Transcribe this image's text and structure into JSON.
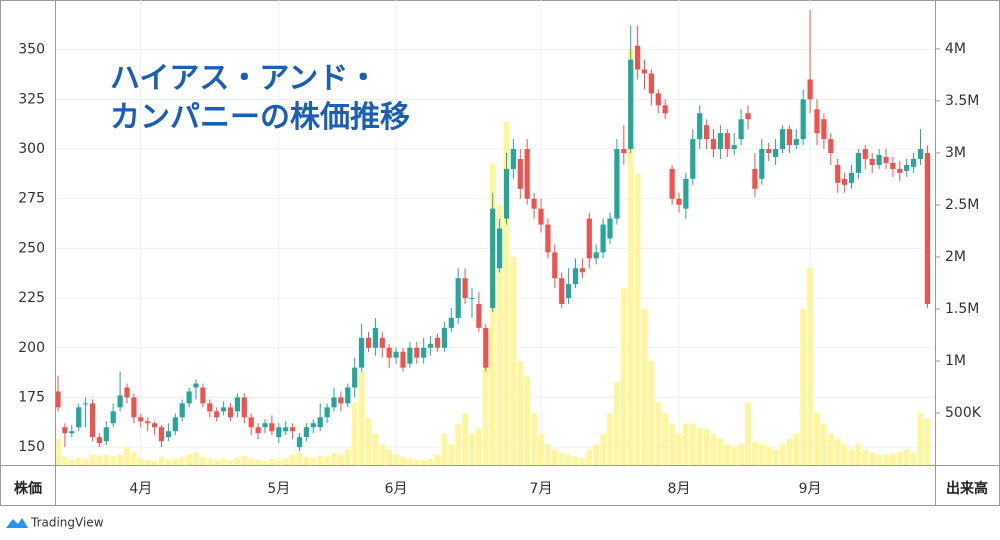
{
  "chart_data": {
    "type": "candlestick",
    "title_lines": [
      "ハイアス・アンド・",
      "カンパニーの株価推移"
    ],
    "y_label": "株価",
    "y2_label": "出来高",
    "brand": "TradingView",
    "up_color": "#26a69a",
    "down_color": "#ef5350",
    "volume_color": "#fff59d",
    "grid": true,
    "categories": [
      null,
      null,
      null,
      null,
      null,
      null,
      null,
      null,
      null,
      null,
      null,
      null,
      "4月",
      null,
      null,
      null,
      null,
      null,
      null,
      null,
      null,
      null,
      null,
      null,
      null,
      null,
      null,
      null,
      null,
      null,
      null,
      null,
      "5月",
      null,
      null,
      null,
      null,
      null,
      null,
      null,
      null,
      null,
      null,
      null,
      null,
      null,
      null,
      null,
      null,
      "6月",
      null,
      null,
      null,
      null,
      null,
      null,
      null,
      null,
      null,
      null,
      null,
      null,
      null,
      null,
      null,
      null,
      null,
      null,
      null,
      null,
      "7月",
      null,
      null,
      null,
      null,
      null,
      null,
      null,
      null,
      null,
      null,
      null,
      null,
      null,
      null,
      null,
      null,
      null,
      null,
      null,
      "8月",
      null,
      null,
      null,
      null,
      null,
      null,
      null,
      null,
      null,
      null,
      null,
      null,
      null,
      null,
      null,
      null,
      null,
      null,
      "9月",
      null,
      null,
      null,
      null,
      null,
      null,
      null,
      null,
      null,
      null,
      null,
      null,
      null,
      null,
      null,
      null,
      null
    ],
    "open": [
      178,
      160,
      157,
      160,
      172,
      172,
      155,
      153,
      162,
      170,
      180,
      175,
      165,
      163,
      162,
      160,
      155,
      158,
      165,
      172,
      180,
      180,
      172,
      168,
      168,
      170,
      168,
      175,
      165,
      160,
      160,
      162,
      155,
      158,
      160,
      150,
      155,
      160,
      160,
      165,
      170,
      175,
      172,
      180,
      190,
      205,
      200,
      205,
      200,
      195,
      198,
      192,
      200,
      195,
      200,
      205,
      200,
      210,
      215,
      235,
      225,
      222,
      210,
      220,
      240,
      265,
      290,
      295,
      300,
      275,
      270,
      262,
      248,
      235,
      225,
      232,
      240,
      265,
      245,
      248,
      255,
      265,
      300,
      300,
      352,
      340,
      338,
      328,
      322,
      290,
      275,
      270,
      285,
      305,
      312,
      305,
      300,
      308,
      300,
      305,
      318,
      290,
      285,
      300,
      296,
      300,
      310,
      302,
      305,
      335,
      320,
      315,
      305,
      292,
      285,
      283,
      288,
      300,
      295,
      292,
      296,
      293,
      290,
      289,
      291,
      295,
      298
    ],
    "high": [
      186,
      162,
      161,
      172,
      175,
      174,
      157,
      163,
      172,
      188,
      182,
      177,
      167,
      165,
      163,
      161,
      162,
      167,
      174,
      180,
      184,
      182,
      174,
      170,
      173,
      172,
      177,
      177,
      167,
      162,
      164,
      166,
      162,
      163,
      162,
      157,
      162,
      164,
      172,
      172,
      180,
      178,
      182,
      195,
      212,
      208,
      215,
      208,
      202,
      200,
      200,
      203,
      203,
      205,
      206,
      207,
      213,
      220,
      240,
      240,
      230,
      228,
      212,
      278,
      265,
      298,
      305,
      300,
      305,
      278,
      275,
      265,
      252,
      238,
      240,
      245,
      245,
      268,
      252,
      265,
      268,
      305,
      312,
      362,
      362,
      345,
      340,
      330,
      325,
      292,
      278,
      288,
      310,
      322,
      315,
      310,
      312,
      310,
      308,
      320,
      322,
      298,
      305,
      303,
      305,
      312,
      312,
      310,
      330,
      370,
      325,
      318,
      308,
      295,
      288,
      292,
      300,
      302,
      298,
      300,
      300,
      296,
      294,
      295,
      298,
      310,
      302
    ],
    "low": [
      168,
      150,
      155,
      158,
      160,
      153,
      150,
      151,
      160,
      168,
      172,
      162,
      160,
      158,
      156,
      150,
      153,
      156,
      163,
      170,
      174,
      170,
      165,
      163,
      166,
      163,
      165,
      162,
      156,
      154,
      157,
      156,
      152,
      156,
      154,
      148,
      153,
      157,
      158,
      162,
      168,
      168,
      170,
      175,
      188,
      198,
      196,
      195,
      190,
      192,
      188,
      190,
      192,
      192,
      196,
      198,
      198,
      208,
      212,
      222,
      215,
      208,
      188,
      218,
      238,
      262,
      285,
      275,
      272,
      265,
      258,
      245,
      230,
      220,
      222,
      230,
      235,
      240,
      242,
      245,
      252,
      262,
      292,
      298,
      335,
      330,
      322,
      318,
      315,
      272,
      268,
      265,
      282,
      300,
      300,
      296,
      295,
      296,
      297,
      302,
      310,
      276,
      282,
      294,
      292,
      298,
      298,
      300,
      302,
      318,
      302,
      300,
      292,
      278,
      278,
      280,
      285,
      290,
      288,
      290,
      290,
      286,
      284,
      286,
      288,
      292,
      220
    ],
    "close": [
      170,
      157,
      158,
      170,
      172,
      155,
      152,
      160,
      168,
      176,
      175,
      165,
      163,
      162,
      160,
      153,
      158,
      165,
      172,
      178,
      182,
      172,
      168,
      165,
      170,
      165,
      175,
      165,
      160,
      157,
      162,
      158,
      160,
      160,
      158,
      155,
      160,
      162,
      165,
      170,
      175,
      172,
      180,
      190,
      205,
      200,
      210,
      200,
      195,
      198,
      190,
      200,
      195,
      200,
      202,
      200,
      210,
      215,
      235,
      225,
      225,
      210,
      190,
      270,
      260,
      290,
      300,
      280,
      275,
      270,
      262,
      248,
      235,
      222,
      232,
      240,
      238,
      245,
      248,
      262,
      265,
      300,
      298,
      345,
      340,
      338,
      328,
      322,
      318,
      275,
      272,
      285,
      305,
      318,
      305,
      300,
      308,
      300,
      302,
      315,
      315,
      280,
      300,
      298,
      300,
      310,
      302,
      305,
      325,
      325,
      308,
      305,
      298,
      283,
      282,
      288,
      298,
      295,
      292,
      297,
      293,
      290,
      288,
      292,
      295,
      300,
      222
    ],
    "volume": [
      250000,
      80000,
      50000,
      70000,
      60000,
      100000,
      90000,
      100000,
      80000,
      100000,
      180000,
      120000,
      60000,
      50000,
      40000,
      80000,
      50000,
      60000,
      70000,
      100000,
      120000,
      80000,
      60000,
      50000,
      60000,
      50000,
      70000,
      90000,
      60000,
      50000,
      40000,
      60000,
      50000,
      60000,
      100000,
      120000,
      80000,
      70000,
      90000,
      80000,
      120000,
      100000,
      150000,
      600000,
      900000,
      450000,
      300000,
      200000,
      150000,
      100000,
      80000,
      60000,
      50000,
      50000,
      60000,
      100000,
      300000,
      200000,
      400000,
      500000,
      300000,
      350000,
      1000000,
      2900000,
      2500000,
      3300000,
      2000000,
      1000000,
      850000,
      500000,
      300000,
      200000,
      150000,
      120000,
      100000,
      80000,
      70000,
      150000,
      200000,
      300000,
      500000,
      800000,
      1700000,
      4000000,
      2800000,
      1500000,
      1000000,
      600000,
      500000,
      400000,
      300000,
      400000,
      400000,
      350000,
      350000,
      300000,
      250000,
      200000,
      180000,
      200000,
      600000,
      220000,
      200000,
      180000,
      150000,
      200000,
      250000,
      300000,
      1500000,
      1900000,
      500000,
      400000,
      300000,
      250000,
      200000,
      150000,
      200000,
      150000,
      120000,
      100000,
      100000,
      110000,
      130000,
      150000,
      120000,
      500000,
      450000
    ],
    "ylim": [
      141,
      375
    ],
    "yticks": [
      150,
      175,
      200,
      225,
      250,
      275,
      300,
      325,
      350
    ],
    "y2lim": [
      0,
      4470000
    ],
    "y2ticks": [
      {
        "value": 500000,
        "label": "500K"
      },
      {
        "value": 1000000,
        "label": "1M"
      },
      {
        "value": 1500000,
        "label": "1.5M"
      },
      {
        "value": 2000000,
        "label": "2M"
      },
      {
        "value": 2500000,
        "label": "2.5M"
      },
      {
        "value": 3000000,
        "label": "3M"
      },
      {
        "value": 3500000,
        "label": "3.5M"
      },
      {
        "value": 4000000,
        "label": "4M"
      }
    ]
  }
}
